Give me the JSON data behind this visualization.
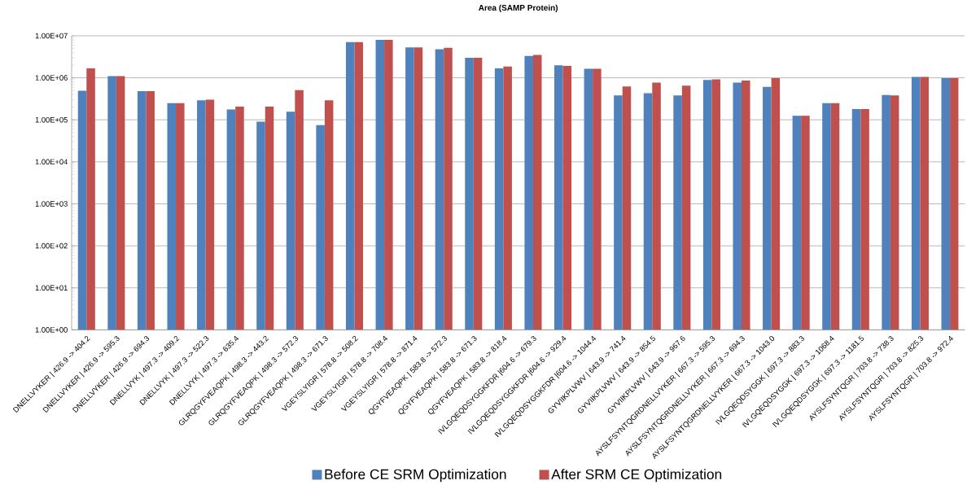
{
  "chart_data": {
    "type": "bar",
    "title": "Area (SAMP Protein)",
    "categories": [
      "DNELLVYKER | 426.9 -> 404.2",
      "DNELLVYKER | 426.9 -> 595.3",
      "DNELLVYKER | 426.9 -> 694.3",
      "DNELLVYK | 497.3 -> 409.2",
      "DNELLVYK | 497.3 -> 522.3",
      "DNELLVYK | 497.3 -> 635.4",
      "GLRQGYFVEAQPK | 498.3 -> 443.2",
      "GLRQGYFVEAQPK | 498.3 -> 572.3",
      "GLRQGYFVEAQPK | 498.3 -> 671.3",
      "VGEYSLYIGR | 578.8 -> 508.2",
      "VGEYSLYIGR | 578.8 -> 708.4",
      "VGEYSLYIGR | 578.8 -> 871.4",
      "QGYFVEAQPK | 583.8 -> 572.3",
      "QGYFVEAQPK | 583.8 -> 671.3",
      "QGYFVEAQPK | 583.8 -> 818.4",
      "IVLGQEQDSYGGKFDR |604.6 -> 679.3",
      "IVLGQEQDSYGGKFDR |604.6 -> 929.4",
      "IVLGQEQDSYGGKFDR |604.6 -> 1044.4",
      "GYVIIKPLVWV | 643.9 -> 741.4",
      "GYVIIKPLVWV | 643.9 -> 854.5",
      "GYVIIKPLVWV | 643.9 -> 967.6",
      "AYSLFSYNTQGRDNELLVYKER | 667.3 -> 595.3",
      "AYSLFSYNTQGRDNELLVYKER | 667.3 -> 694.3",
      "AYSLFSYNTQGRDNELLVYKER | 667.3 -> 1043.0",
      "IVLGQEQDSYGGK | 697.3 -> 883.3",
      "IVLGQEQDSYGGK | 697.3 -> 1068.4",
      "IVLGQEQDSYGGK | 697.3 -> 1181.5",
      "AYSLFSYNTQGR | 703.8 -> 738.3",
      "AYSLFSYNTQGR | 703.8 -> 825.3",
      "AYSLFSYNTQGR | 703.8 -> 972.4"
    ],
    "series": [
      {
        "name": "Before CE SRM Optimization",
        "color": "#4f81bd",
        "values": [
          490000,
          1100000,
          480000,
          250000,
          290000,
          176000,
          90000,
          156000,
          75000,
          7100000,
          8000000,
          5300000,
          4800000,
          3000000,
          1670000,
          3300000,
          1990000,
          1650000,
          380000,
          430000,
          380000,
          890000,
          770000,
          610000,
          125000,
          250000,
          180000,
          390000,
          1050000,
          980000
        ]
      },
      {
        "name": "After SRM CE Optimization",
        "color": "#c0504d",
        "values": [
          1670000,
          1100000,
          480000,
          250000,
          300000,
          206000,
          206000,
          510000,
          290000,
          7100000,
          8000000,
          5300000,
          5200000,
          3000000,
          1860000,
          3500000,
          1920000,
          1650000,
          620000,
          770000,
          650000,
          920000,
          860000,
          980000,
          125000,
          250000,
          180000,
          380000,
          1050000,
          980000
        ]
      }
    ],
    "log": true,
    "ylim": [
      1,
      10000000
    ],
    "yticks": [
      {
        "value": 1,
        "label": "1.00E+00"
      },
      {
        "value": 10,
        "label": "1.00E+01"
      },
      {
        "value": 100,
        "label": "1.00E+02"
      },
      {
        "value": 1000,
        "label": "1.00E+03"
      },
      {
        "value": 10000,
        "label": "1.00E+04"
      },
      {
        "value": 100000,
        "label": "1.00E+05"
      },
      {
        "value": 1000000,
        "label": "1.00E+06"
      },
      {
        "value": 10000000,
        "label": "1.00E+07"
      }
    ],
    "grid": "y",
    "legend": "bottom"
  }
}
